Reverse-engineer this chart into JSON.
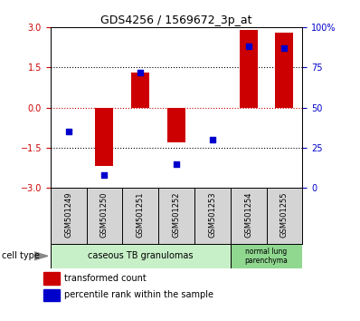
{
  "title": "GDS4256 / 1569672_3p_at",
  "samples": [
    "GSM501249",
    "GSM501250",
    "GSM501251",
    "GSM501252",
    "GSM501253",
    "GSM501254",
    "GSM501255"
  ],
  "transformed_count": [
    0.0,
    -2.2,
    1.3,
    -1.3,
    0.0,
    2.9,
    2.8
  ],
  "percentile_rank": [
    35,
    8,
    72,
    15,
    30,
    88,
    87
  ],
  "ylim_left": [
    -3,
    3
  ],
  "ylim_right": [
    0,
    100
  ],
  "yticks_left": [
    -3,
    -1.5,
    0,
    1.5,
    3
  ],
  "yticks_right": [
    0,
    25,
    50,
    75,
    100
  ],
  "ytick_labels_right": [
    "0",
    "25",
    "50",
    "75",
    "100%"
  ],
  "bar_color": "#cc0000",
  "dot_color": "#0000cc",
  "hline_color": "#cc0000",
  "dotted_hline_color": "#000000",
  "group1_samples": [
    0,
    1,
    2,
    3,
    4
  ],
  "group2_samples": [
    5,
    6
  ],
  "group1_label": "caseous TB granulomas",
  "group2_label": "normal lung\nparenchyma",
  "group1_color": "#c8f0c8",
  "group2_color": "#90d890",
  "cell_type_label": "cell type",
  "legend1_label": "transformed count",
  "legend2_label": "percentile rank within the sample",
  "background_color": "#ffffff",
  "plot_bg_color": "#ffffff",
  "tick_label_color_left": "#cc0000",
  "tick_label_color_right": "#0000cc",
  "label_bg_color": "#d4d4d4"
}
